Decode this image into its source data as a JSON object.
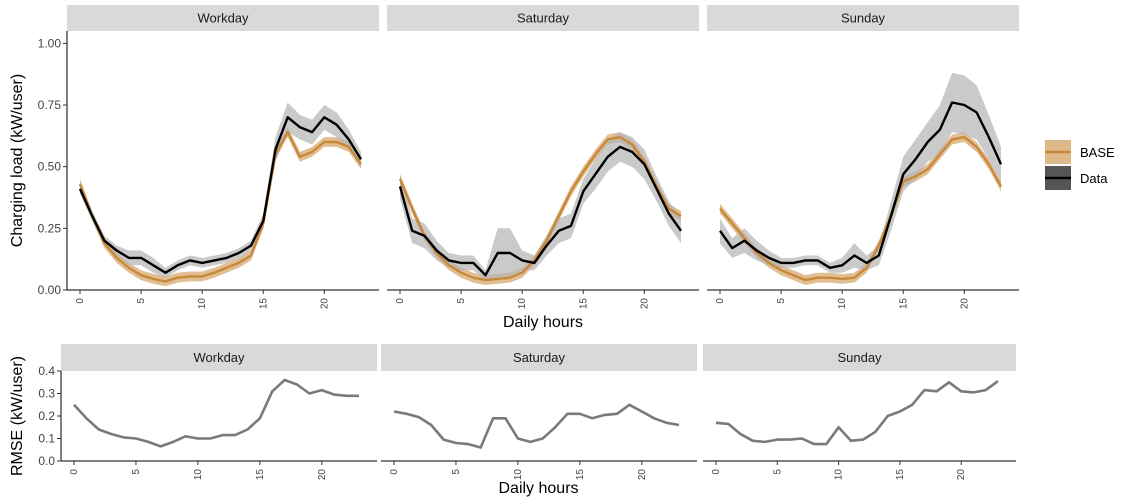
{
  "colors": {
    "base": "#c8883a",
    "data": "#000000",
    "band": "#b4b4b4",
    "rmse": "#7a7a7a",
    "strip": "#d9d9d9"
  },
  "chart_data": [
    {
      "type": "line",
      "panels": [
        "Workday",
        "Saturday",
        "Sunday"
      ],
      "xlabel": "Daily hours",
      "ylabel": "Charging load (kW/user)",
      "xlim": [
        0,
        23
      ],
      "ylim": [
        0,
        1.05
      ],
      "x_ticks": [
        0,
        5,
        10,
        15,
        20
      ],
      "y_ticks": [
        "0.00",
        "0.25",
        "0.50",
        "0.75",
        "1.00"
      ],
      "legend": {
        "position": "right",
        "entries": [
          "BASE",
          "Data"
        ]
      },
      "x": [
        0,
        1,
        2,
        3,
        4,
        5,
        6,
        7,
        8,
        9,
        10,
        11,
        12,
        13,
        14,
        15,
        16,
        17,
        18,
        19,
        20,
        21,
        22,
        23
      ],
      "series": [
        {
          "name": "BASE",
          "panel_values": [
            [
              0.43,
              0.3,
              0.19,
              0.13,
              0.09,
              0.06,
              0.045,
              0.035,
              0.05,
              0.055,
              0.055,
              0.07,
              0.09,
              0.11,
              0.14,
              0.27,
              0.55,
              0.64,
              0.54,
              0.56,
              0.6,
              0.6,
              0.58,
              0.51
            ],
            [
              0.45,
              0.33,
              0.22,
              0.15,
              0.1,
              0.07,
              0.05,
              0.04,
              0.045,
              0.05,
              0.07,
              0.12,
              0.2,
              0.3,
              0.4,
              0.48,
              0.55,
              0.61,
              0.62,
              0.59,
              0.52,
              0.42,
              0.33,
              0.3
            ],
            [
              0.33,
              0.27,
              0.21,
              0.15,
              0.11,
              0.08,
              0.06,
              0.04,
              0.05,
              0.05,
              0.045,
              0.05,
              0.09,
              0.18,
              0.3,
              0.44,
              0.46,
              0.49,
              0.55,
              0.61,
              0.62,
              0.58,
              0.51,
              0.42
            ]
          ],
          "band_halfwidth": 0.02
        },
        {
          "name": "Data",
          "panel_values": [
            [
              0.41,
              0.3,
              0.2,
              0.16,
              0.13,
              0.13,
              0.1,
              0.07,
              0.1,
              0.12,
              0.11,
              0.12,
              0.13,
              0.15,
              0.18,
              0.28,
              0.57,
              0.7,
              0.66,
              0.64,
              0.7,
              0.67,
              0.61,
              0.53
            ],
            [
              0.42,
              0.24,
              0.22,
              0.16,
              0.12,
              0.11,
              0.11,
              0.06,
              0.15,
              0.15,
              0.12,
              0.11,
              0.18,
              0.24,
              0.26,
              0.4,
              0.47,
              0.54,
              0.58,
              0.56,
              0.51,
              0.41,
              0.31,
              0.24
            ],
            [
              0.24,
              0.17,
              0.2,
              0.16,
              0.13,
              0.11,
              0.11,
              0.12,
              0.12,
              0.09,
              0.1,
              0.14,
              0.11,
              0.14,
              0.3,
              0.47,
              0.53,
              0.6,
              0.65,
              0.76,
              0.75,
              0.72,
              0.62,
              0.51
            ]
          ],
          "band_halfwidth": [
            [
              0.02,
              0.02,
              0.02,
              0.02,
              0.03,
              0.03,
              0.03,
              0.02,
              0.02,
              0.02,
              0.02,
              0.02,
              0.02,
              0.02,
              0.02,
              0.03,
              0.05,
              0.06,
              0.05,
              0.05,
              0.05,
              0.05,
              0.04,
              0.03
            ],
            [
              0.05,
              0.05,
              0.05,
              0.04,
              0.03,
              0.03,
              0.03,
              0.02,
              0.1,
              0.1,
              0.04,
              0.03,
              0.04,
              0.05,
              0.05,
              0.05,
              0.06,
              0.06,
              0.06,
              0.06,
              0.06,
              0.05,
              0.05,
              0.05
            ],
            [
              0.05,
              0.04,
              0.05,
              0.04,
              0.03,
              0.02,
              0.02,
              0.02,
              0.02,
              0.02,
              0.03,
              0.05,
              0.03,
              0.04,
              0.06,
              0.07,
              0.08,
              0.08,
              0.1,
              0.12,
              0.12,
              0.11,
              0.09,
              0.07
            ]
          ]
        }
      ]
    },
    {
      "type": "line",
      "panels": [
        "Workday",
        "Saturday",
        "Sunday"
      ],
      "xlabel": "Daily hours",
      "ylabel": "RMSE (kW/user)",
      "xlim": [
        0,
        23
      ],
      "ylim": [
        0,
        0.4
      ],
      "x_ticks": [
        0,
        5,
        10,
        15,
        20
      ],
      "y_ticks": [
        "0.0",
        "0.1",
        "0.2",
        "0.3",
        "0.4"
      ],
      "x": [
        0,
        1,
        2,
        3,
        4,
        5,
        6,
        7,
        8,
        9,
        10,
        11,
        12,
        13,
        14,
        15,
        16,
        17,
        18,
        19,
        20,
        21,
        22,
        23
      ],
      "series": [
        {
          "panel_values": [
            [
              0.25,
              0.19,
              0.14,
              0.12,
              0.105,
              0.1,
              0.085,
              0.065,
              0.085,
              0.11,
              0.1,
              0.1,
              0.115,
              0.115,
              0.14,
              0.19,
              0.31,
              0.36,
              0.34,
              0.3,
              0.315,
              0.295,
              0.29,
              0.29
            ],
            [
              0.22,
              0.21,
              0.195,
              0.16,
              0.095,
              0.08,
              0.075,
              0.06,
              0.19,
              0.19,
              0.1,
              0.085,
              0.1,
              0.15,
              0.21,
              0.21,
              0.19,
              0.205,
              0.21,
              0.25,
              0.22,
              0.19,
              0.17,
              0.16
            ],
            [
              0.17,
              0.165,
              0.12,
              0.09,
              0.085,
              0.095,
              0.095,
              0.1,
              0.075,
              0.075,
              0.15,
              0.09,
              0.095,
              0.13,
              0.2,
              0.22,
              0.25,
              0.315,
              0.31,
              0.35,
              0.31,
              0.305,
              0.315,
              0.355
            ]
          ]
        }
      ]
    }
  ]
}
